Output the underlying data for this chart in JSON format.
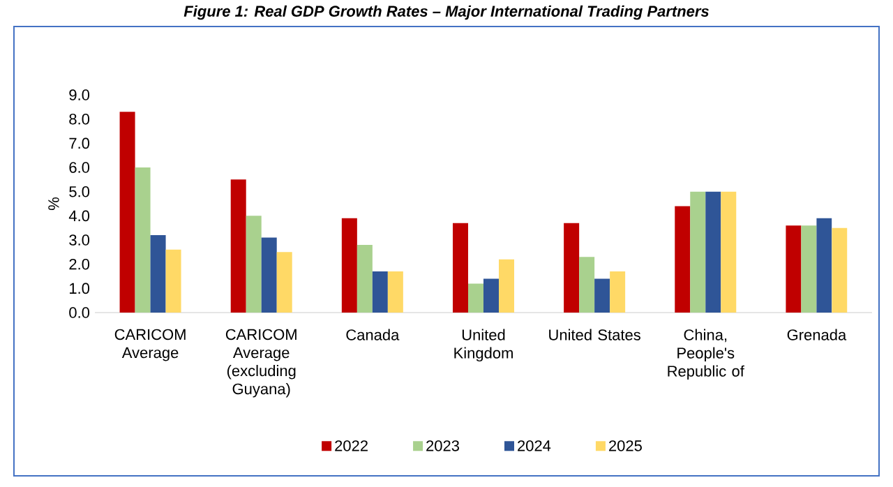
{
  "chart_data": {
    "type": "bar",
    "title": "Figure 1: Real GDP Growth Rates – Major International Trading Partners",
    "ylabel": "%",
    "categories": [
      "CARICOM Average",
      "CARICOM Average (excluding Guyana)",
      "Canada",
      "United Kingdom",
      "United States",
      "China, People's Republic of",
      "Grenada"
    ],
    "series": [
      {
        "name": "2022",
        "color": "#c00000",
        "values": [
          8.3,
          5.5,
          3.9,
          3.7,
          3.7,
          4.4,
          3.6
        ]
      },
      {
        "name": "2023",
        "color": "#a9d18e",
        "values": [
          6.0,
          4.0,
          2.8,
          1.2,
          2.3,
          5.0,
          3.6
        ]
      },
      {
        "name": "2024",
        "color": "#2f5597",
        "values": [
          3.2,
          3.1,
          1.7,
          1.4,
          1.4,
          5.0,
          3.9
        ]
      },
      {
        "name": "2025",
        "color": "#ffd966",
        "values": [
          2.6,
          2.5,
          1.7,
          2.2,
          1.7,
          5.0,
          3.5
        ]
      }
    ],
    "ylim": [
      0,
      9
    ],
    "yticks": [
      {
        "value": 0,
        "label": "0.0"
      },
      {
        "value": 1,
        "label": "1.0"
      },
      {
        "value": 2,
        "label": "2.0"
      },
      {
        "value": 3,
        "label": "3.0"
      },
      {
        "value": 4,
        "label": "4.0"
      },
      {
        "value": 5,
        "label": "5.0"
      },
      {
        "value": 6,
        "label": "6.0"
      },
      {
        "value": 7,
        "label": "7.0"
      },
      {
        "value": 8,
        "label": "8.0"
      },
      {
        "value": 9,
        "label": "9.0"
      }
    ],
    "legend": "bottom"
  }
}
